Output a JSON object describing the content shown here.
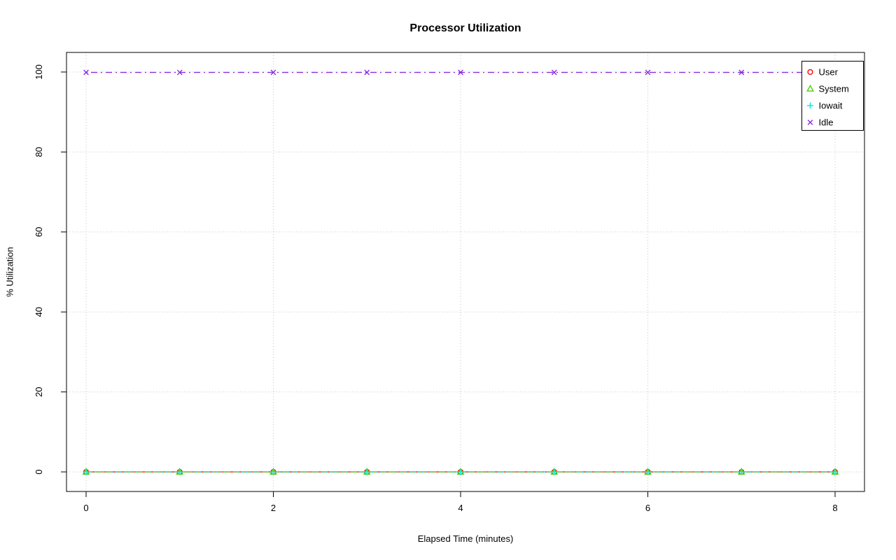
{
  "chart_data": {
    "type": "line",
    "title": "Processor Utilization",
    "xlabel": "Elapsed Time (minutes)",
    "ylabel": "% Utilization",
    "x": [
      0,
      1,
      2,
      3,
      4,
      5,
      6,
      7,
      8
    ],
    "xlim": [
      0,
      8
    ],
    "ylim": [
      0,
      100
    ],
    "x_ticks": [
      0,
      2,
      4,
      6,
      8
    ],
    "y_ticks": [
      0,
      20,
      40,
      60,
      80,
      100
    ],
    "grid": true,
    "legend_position": "top-right",
    "series": [
      {
        "name": "User",
        "color": "#ff0000",
        "marker": "circle",
        "linestyle": "solid",
        "values": [
          0,
          0,
          0,
          0,
          0,
          0,
          0,
          0,
          0
        ]
      },
      {
        "name": "System",
        "color": "#4cd000",
        "marker": "triangle",
        "linestyle": "dashed",
        "values": [
          0,
          0,
          0,
          0,
          0,
          0,
          0,
          0,
          0
        ]
      },
      {
        "name": "Iowait",
        "color": "#00e5e5",
        "marker": "plus",
        "linestyle": "dotted",
        "values": [
          0,
          0,
          0,
          0,
          0,
          0,
          0,
          0,
          0
        ]
      },
      {
        "name": "Idle",
        "color": "#8a2be2",
        "marker": "x",
        "linestyle": "dashdot",
        "values": [
          99.9,
          99.9,
          99.9,
          99.9,
          99.9,
          99.9,
          99.9,
          99.9,
          99.9
        ]
      }
    ]
  }
}
